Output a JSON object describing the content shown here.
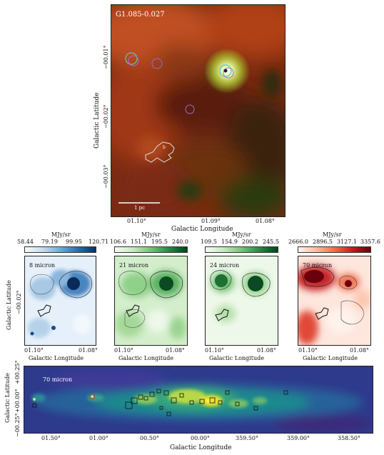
{
  "top_panel": {
    "source_label": "G1.085-0.027",
    "scalebar_label": "1 pc",
    "region_label": "b",
    "x_axis_label": "Galactic Longitude",
    "y_axis_label": "Galactic Latitude",
    "x_ticks": [
      "01.10°",
      "01.09°",
      "01.08°"
    ],
    "y_ticks": [
      "−00.01°",
      "−00.02°",
      "−00.03°"
    ]
  },
  "small_panels": [
    {
      "band_label": "8 micron",
      "cbar_unit": "MJy/sr",
      "cbar_ticks": [
        "58.44",
        "79.19",
        "99.95",
        "120.71"
      ],
      "colormap": "blues"
    },
    {
      "band_label": "21 micron",
      "cbar_unit": "MJy/sr",
      "cbar_ticks": [
        "106.6",
        "151.1",
        "195.5",
        "240.0"
      ],
      "colormap": "greens"
    },
    {
      "band_label": "24 micron",
      "cbar_unit": "MJy/sr",
      "cbar_ticks": [
        "109.5",
        "154.9",
        "200.2",
        "245.5"
      ],
      "colormap": "greens"
    },
    {
      "band_label": "70 micron",
      "cbar_unit": "MJy/sr",
      "cbar_ticks": [
        "2666.0",
        "2896.5",
        "3127.1",
        "3357.6"
      ],
      "colormap": "reds"
    }
  ],
  "small_x_ticks": [
    "01.10°",
    "01.08°"
  ],
  "small_x_axis_label": "Galactic Longitude",
  "small_y_axis_label": "Galactic Latitude",
  "small_y_tick": "−00.02°",
  "bottom_panel": {
    "band_label": "70 micron",
    "x_axis_label": "Galactic Longitude",
    "y_axis_label": "Galactic Latitude",
    "x_ticks": [
      "01.50°",
      "01.00°",
      "00.50°",
      "00.00°",
      "359.50°",
      "359.00°",
      "358.50°"
    ],
    "y_ticks": [
      "+00.25°",
      "+00.00°",
      "−00.25°"
    ]
  }
}
